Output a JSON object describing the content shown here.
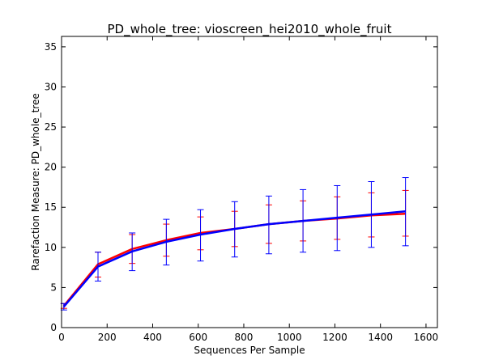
{
  "chart_data": {
    "type": "line",
    "title": "PD_whole_tree: vioscreen_hei2010_whole_fruit",
    "xlabel": "Sequences Per Sample",
    "ylabel": "Rarefaction Measure: PD_whole_tree",
    "xlim": [
      0,
      1650
    ],
    "ylim": [
      0,
      36.3
    ],
    "xticks": [
      0,
      200,
      400,
      600,
      800,
      1000,
      1200,
      1400,
      1600
    ],
    "yticks": [
      0,
      5,
      10,
      15,
      20,
      25,
      30,
      35
    ],
    "grid": false,
    "legend": "none",
    "x": [
      10,
      160,
      310,
      460,
      610,
      760,
      910,
      1060,
      1210,
      1360,
      1510
    ],
    "series": [
      {
        "color": "#ff0000",
        "values": [
          2.7,
          7.9,
          9.8,
          10.9,
          11.8,
          12.3,
          12.9,
          13.3,
          13.6,
          14.0,
          14.2
        ],
        "err_low": [
          2.4,
          6.3,
          8.0,
          8.9,
          9.7,
          10.1,
          10.5,
          10.8,
          11.0,
          11.3,
          11.4
        ],
        "err_high": [
          3.0,
          9.4,
          11.6,
          12.9,
          13.8,
          14.5,
          15.3,
          15.8,
          16.3,
          16.8,
          17.1
        ]
      },
      {
        "color": "#0000ff",
        "values": [
          2.6,
          7.6,
          9.5,
          10.7,
          11.6,
          12.3,
          12.9,
          13.3,
          13.7,
          14.1,
          14.5
        ],
        "err_low": [
          2.2,
          5.8,
          7.1,
          7.8,
          8.3,
          8.8,
          9.2,
          9.4,
          9.6,
          10.0,
          10.2
        ],
        "err_high": [
          3.0,
          9.4,
          11.8,
          13.5,
          14.7,
          15.7,
          16.4,
          17.2,
          17.7,
          18.2,
          18.7
        ]
      }
    ]
  }
}
